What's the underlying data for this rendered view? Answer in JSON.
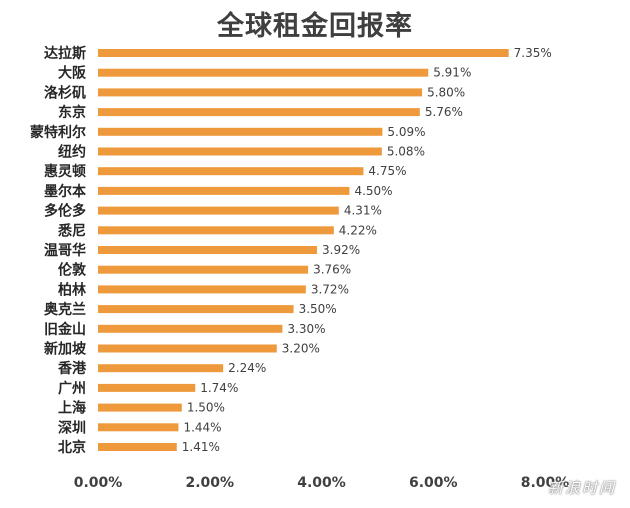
{
  "chart_data": {
    "type": "bar",
    "orientation": "horizontal",
    "title": "全球租金回报率",
    "categories": [
      "达拉斯",
      "大阪",
      "洛杉矶",
      "东京",
      "蒙特利尔",
      "纽约",
      "惠灵顿",
      "墨尔本",
      "多伦多",
      "悉尼",
      "温哥华",
      "伦敦",
      "柏林",
      "奥克兰",
      "旧金山",
      "新加坡",
      "香港",
      "广州",
      "上海",
      "深圳",
      "北京"
    ],
    "values": [
      7.35,
      5.91,
      5.8,
      5.76,
      5.09,
      5.08,
      4.75,
      4.5,
      4.31,
      4.22,
      3.92,
      3.76,
      3.72,
      3.5,
      3.3,
      3.2,
      2.24,
      1.74,
      1.5,
      1.44,
      1.41
    ],
    "value_labels": [
      "7.35%",
      "5.91%",
      "5.80%",
      "5.76%",
      "5.09%",
      "5.08%",
      "4.75%",
      "4.50%",
      "4.31%",
      "4.22%",
      "3.92%",
      "3.76%",
      "3.72%",
      "3.50%",
      "3.30%",
      "3.20%",
      "2.24%",
      "1.74%",
      "1.50%",
      "1.44%",
      "1.41%"
    ],
    "x_ticks": [
      "0.00%",
      "2.00%",
      "4.00%",
      "6.00%",
      "8.00%"
    ],
    "x_tick_values": [
      0,
      2,
      4,
      6,
      8
    ],
    "xlim": [
      0,
      8
    ],
    "xlabel": "",
    "ylabel": "",
    "grid": false,
    "bar_color": "#ee9a3c"
  },
  "watermark": "新浪时间"
}
